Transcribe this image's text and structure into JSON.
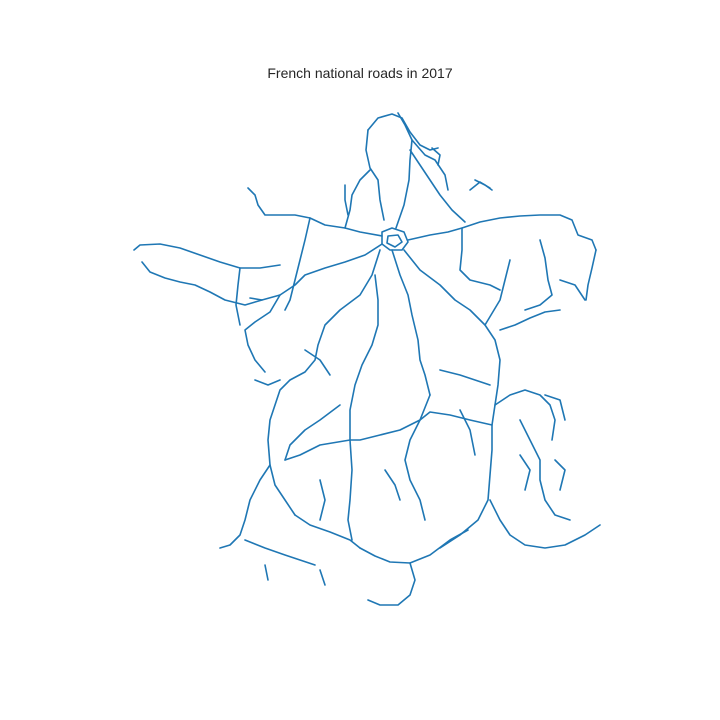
{
  "map": {
    "title": "French national roads in 2017",
    "road_color": "#1f77b4",
    "background": "#ffffff",
    "axes_visible": false
  }
}
